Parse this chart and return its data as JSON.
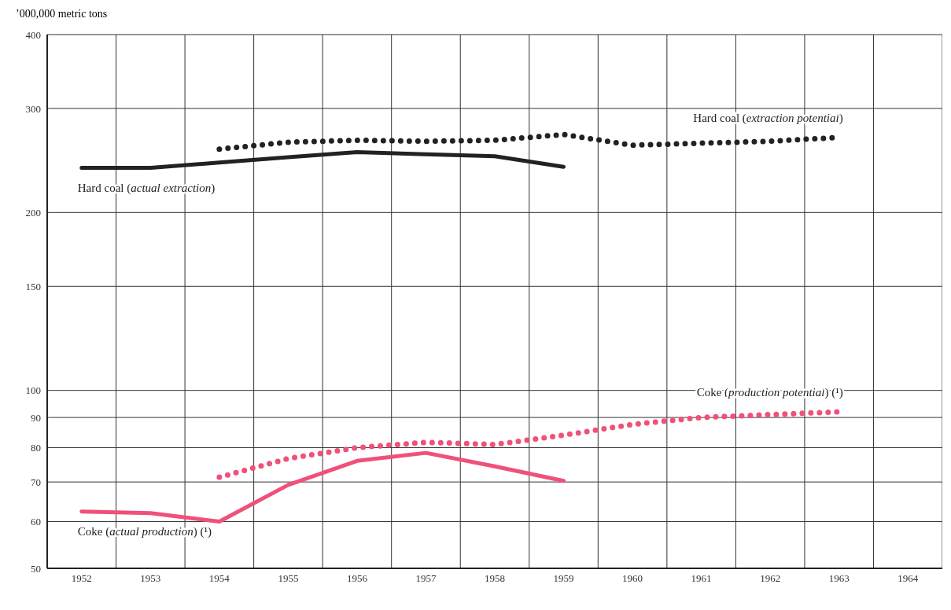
{
  "chart_data": {
    "type": "line",
    "ylabel": "’000,000 metric tons",
    "categories": [
      "1952",
      "1953",
      "1954",
      "1955",
      "1956",
      "1957",
      "1958",
      "1959",
      "1960",
      "1961",
      "1962",
      "1963",
      "1964"
    ],
    "series": [
      {
        "name": "Hard coal (actual extraction)",
        "color": "#222222",
        "line_style": "solid",
        "values": [
          238,
          238,
          243,
          248,
          253,
          251,
          249,
          239,
          null,
          null,
          null,
          null,
          null
        ]
      },
      {
        "name": "Hard coal (extraction potential)",
        "color": "#222222",
        "line_style": "dotted",
        "values": [
          null,
          null,
          256,
          263,
          265,
          264,
          265,
          271,
          260,
          262,
          264,
          268,
          null
        ]
      },
      {
        "name": "Coke (actual production) (¹)",
        "color": "#f0507a",
        "line_style": "solid",
        "values": [
          62.4,
          62,
          60,
          69.2,
          76,
          78.4,
          74.4,
          70.3,
          null,
          null,
          null,
          null,
          null
        ]
      },
      {
        "name": "Coke (production potential) (¹)",
        "color": "#f0507a",
        "line_style": "dotted",
        "values": [
          null,
          null,
          71.3,
          76.7,
          80,
          81.7,
          81,
          84,
          87.6,
          90,
          91,
          92,
          null
        ]
      }
    ],
    "log": true,
    "ylim": [
      50,
      400
    ],
    "yticks": [
      50,
      60,
      70,
      80,
      90,
      100,
      150,
      200,
      300,
      400
    ],
    "grid": true,
    "marker": "none"
  }
}
